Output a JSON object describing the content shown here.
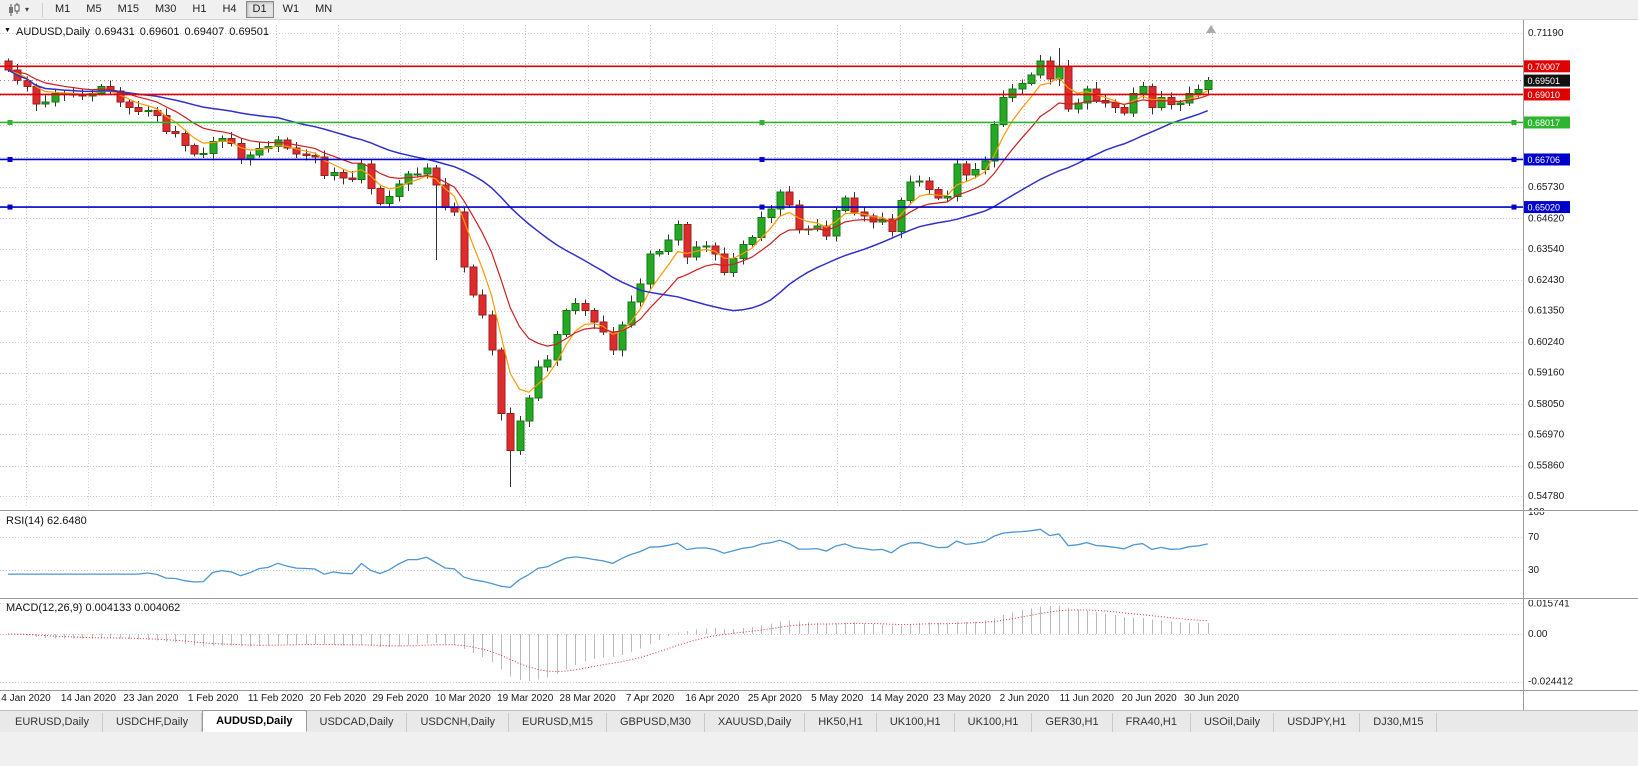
{
  "icons": {
    "chart_menu": "▼",
    "chart_type_caret": "▾"
  },
  "toolbar": {
    "timeframes": [
      "M1",
      "M5",
      "M15",
      "M30",
      "H1",
      "H4",
      "D1",
      "W1",
      "MN"
    ],
    "active": "D1"
  },
  "window": {
    "title": {
      "symbol": "AUDUSD,Daily",
      "open": "0.69431",
      "high": "0.69601",
      "low": "0.69407",
      "close": "0.69501"
    }
  },
  "main_chart": {
    "y_axis": {
      "labeled": [
        [
          0.7119,
          "0.71190"
        ],
        [
          0.6573,
          "0.65730"
        ],
        [
          0.6462,
          "0.64620"
        ],
        [
          0.6354,
          "0.63540"
        ],
        [
          0.6243,
          "0.62430"
        ],
        [
          0.6135,
          "0.61350"
        ],
        [
          0.6024,
          "0.60240"
        ],
        [
          0.5916,
          "0.59160"
        ],
        [
          0.5805,
          "0.58050"
        ],
        [
          0.5697,
          "0.56970"
        ],
        [
          0.5586,
          "0.55860"
        ],
        [
          0.5478,
          "0.54780"
        ]
      ],
      "unlabeled": [
        0.7011,
        0.69,
        0.6792,
        0.6681
      ]
    },
    "levels": [
      {
        "price": 0.70007,
        "label": "0.70007",
        "color": "#E00000",
        "selected": false
      },
      {
        "price": 0.6901,
        "label": "0.69010",
        "color": "#E00000",
        "selected": false
      },
      {
        "price": 0.68017,
        "label": "0.68017",
        "color": "#2DB52D",
        "selected": true
      },
      {
        "price": 0.66706,
        "label": "0.66706",
        "color": "#0000CC",
        "selected": true
      },
      {
        "price": 0.6502,
        "label": "0.65020",
        "color": "#0000CC",
        "selected": true
      }
    ],
    "current_price": {
      "value": 0.69501,
      "label": "0.69501",
      "tag_color": "#111111",
      "line_color": "#C06868"
    }
  },
  "chart_data": {
    "type": "candlestick",
    "symbol": "AUDUSD",
    "timeframe": "Daily",
    "first_open": 0.702,
    "closes": [
      0.6988,
      0.695,
      0.693,
      0.6867,
      0.6875,
      0.6905,
      0.69,
      0.6903,
      0.6896,
      0.6905,
      0.693,
      0.6913,
      0.6875,
      0.6855,
      0.684,
      0.6845,
      0.6827,
      0.677,
      0.6763,
      0.672,
      0.669,
      0.6692,
      0.6735,
      0.6745,
      0.6728,
      0.6672,
      0.6687,
      0.671,
      0.6717,
      0.674,
      0.6712,
      0.669,
      0.6685,
      0.668,
      0.6613,
      0.6625,
      0.6605,
      0.66,
      0.6655,
      0.6568,
      0.6515,
      0.654,
      0.6583,
      0.662,
      0.662,
      0.664,
      0.658,
      0.65,
      0.6485,
      0.629,
      0.619,
      0.612,
      0.5995,
      0.577,
      0.564,
      0.5745,
      0.5825,
      0.5935,
      0.596,
      0.605,
      0.6135,
      0.616,
      0.6135,
      0.6095,
      0.606,
      0.5995,
      0.6085,
      0.6165,
      0.623,
      0.6335,
      0.6345,
      0.6385,
      0.644,
      0.6325,
      0.636,
      0.6365,
      0.6335,
      0.627,
      0.632,
      0.637,
      0.6395,
      0.6465,
      0.6495,
      0.6555,
      0.651,
      0.6425,
      0.6425,
      0.6435,
      0.64,
      0.649,
      0.6535,
      0.6485,
      0.647,
      0.645,
      0.646,
      0.6415,
      0.6525,
      0.659,
      0.6595,
      0.6565,
      0.6535,
      0.654,
      0.6655,
      0.6615,
      0.6635,
      0.6665,
      0.6795,
      0.689,
      0.692,
      0.694,
      0.697,
      0.702,
      0.6955,
      0.7,
      0.685,
      0.687,
      0.692,
      0.688,
      0.687,
      0.6855,
      0.6835,
      0.6905,
      0.693,
      0.6855,
      0.689,
      0.6865,
      0.687,
      0.6905,
      0.6918,
      0.69501
    ],
    "low_overrides": {
      "46": 0.6315,
      "54": 0.551
    },
    "high_overrides": {
      "113": 0.7065
    },
    "x_labels": [
      "4 Jan 2020",
      "14 Jan 2020",
      "23 Jan 2020",
      "1 Feb 2020",
      "11 Feb 2020",
      "20 Feb 2020",
      "29 Feb 2020",
      "10 Mar 2020",
      "19 Mar 2020",
      "28 Mar 2020",
      "7 Apr 2020",
      "16 Apr 2020",
      "25 Apr 2020",
      "5 May 2020",
      "14 May 2020",
      "23 May 2020",
      "2 Jun 2020",
      "11 Jun 2020",
      "20 Jun 2020",
      "30 Jun 2020"
    ],
    "moving_averages": [
      {
        "type": "ema",
        "period": 5,
        "color": "#FF9900"
      },
      {
        "type": "ema",
        "period": 11,
        "color": "#CC2020"
      },
      {
        "type": "sma",
        "period": 30,
        "color": "#3030CC"
      }
    ],
    "colors": {
      "up": "#25A925",
      "down": "#DF2B2B",
      "up_border": "#157815",
      "down_border": "#992020",
      "wick": "#333333",
      "grid": "#CDCDCD",
      "axis_text": "#1A1A1A",
      "separator": "#9A9A9A"
    },
    "indicators": {
      "rsi": {
        "label": "RSI(14)",
        "value_label": "62.6480",
        "period": 14,
        "color": "#4D96D2",
        "axis_marks": [
          {
            "v": 100,
            "label": "100",
            "dotted": false
          },
          {
            "v": 70,
            "label": "70",
            "dotted": true
          },
          {
            "v": 30,
            "label": "30",
            "dotted": true
          }
        ]
      },
      "macd": {
        "label": "MACD(12,26,9)",
        "values_label": "0.004133 0.004062",
        "fast": 12,
        "slow": 26,
        "signal": 9,
        "hist_color": "#BBBBBB",
        "signal_color": "#D63031",
        "axis_marks": [
          {
            "v": 0.015741,
            "label": "0.015741"
          },
          {
            "v": 0,
            "label": "0.00"
          },
          {
            "v": -0.024412,
            "label": "-0.024412"
          }
        ]
      }
    }
  },
  "tabs": {
    "active_index": 2,
    "items": [
      "EURUSD,Daily",
      "USDCHF,Daily",
      "AUDUSD,Daily",
      "USDCAD,Daily",
      "USDCNH,Daily",
      "EURUSD,M15",
      "GBPUSD,M30",
      "XAUUSD,Daily",
      "HK50,H1",
      "UK100,H1",
      "UK100,H1",
      "GER30,H1",
      "FRA40,H1",
      "USOil,Daily",
      "USDJPY,H1",
      "DJ30,M15"
    ]
  }
}
